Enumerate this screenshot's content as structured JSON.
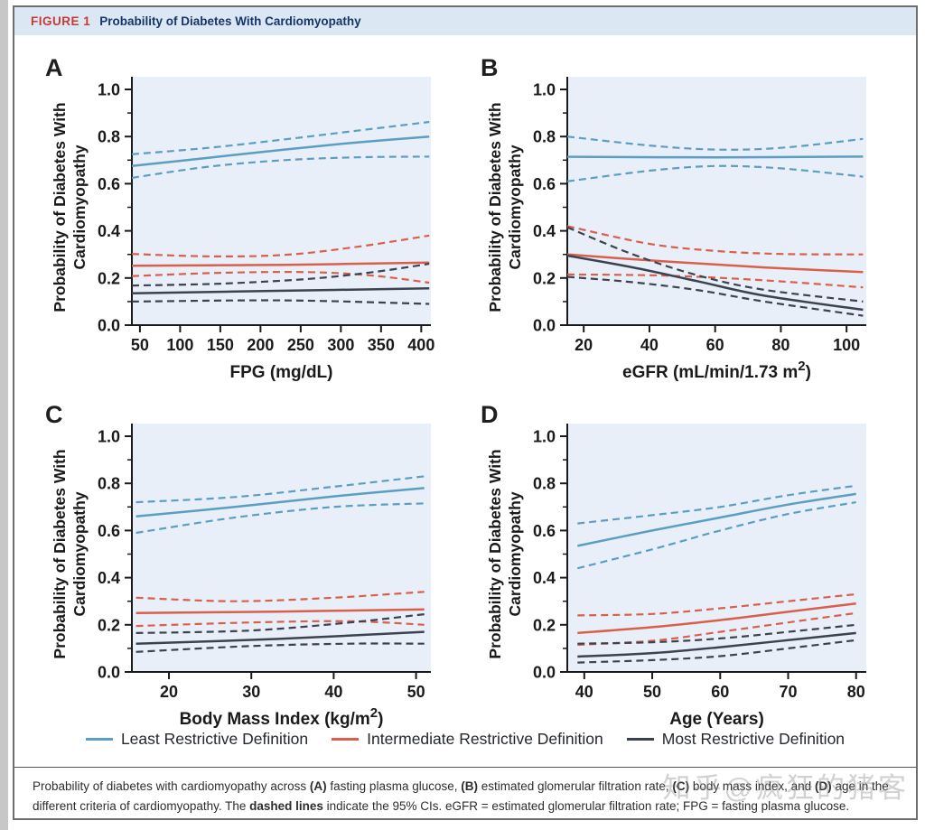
{
  "header": {
    "figure_label": "FIGURE 1",
    "title": "Probability of Diabetes With Cardiomyopathy"
  },
  "colors": {
    "least": "#5b9ec3",
    "intermediate": "#d95f4b",
    "most": "#3c4350",
    "plot_bg": "#e9eff8",
    "header_bg": "#dbe8f4",
    "figure_label_red": "#c63a33",
    "title_navy": "#17356b",
    "axis": "#1a1a1a",
    "border_gray": "#6e6e6e"
  },
  "legend": {
    "items": [
      {
        "label": "Least Restrictive Definition",
        "group": "least"
      },
      {
        "label": "Intermediate Restrictive Definition",
        "group": "intermediate"
      },
      {
        "label": "Most Restrictive Definition",
        "group": "most"
      }
    ]
  },
  "caption": {
    "segments": [
      {
        "text": "Probability of diabetes with cardiomyopathy across ",
        "bold": false
      },
      {
        "text": "(A)",
        "bold": true
      },
      {
        "text": " fasting plasma glucose, ",
        "bold": false
      },
      {
        "text": "(B)",
        "bold": true
      },
      {
        "text": " estimated glomerular filtration rate, ",
        "bold": false
      },
      {
        "text": "(C)",
        "bold": true
      },
      {
        "text": " body mass index, and ",
        "bold": false
      },
      {
        "text": "(D)",
        "bold": true
      },
      {
        "text": " age in the different criteria of cardiomyopathy. The ",
        "bold": false
      },
      {
        "text": "dashed lines",
        "bold": true
      },
      {
        "text": " indicate the 95% CIs. eGFR = estimated glomerular filtration rate; FPG = fasting plasma glucose.",
        "bold": false
      }
    ]
  },
  "watermark": {
    "text": "知乎@疯狂的猪客"
  },
  "chart_data": [
    {
      "type": "line",
      "panel": "A",
      "title": "",
      "xlabel": "FPG (mg/dL)",
      "ylabel_lines": [
        "Probability of Diabetes With",
        "Cardiomyopathy"
      ],
      "xdomain": [
        40,
        412
      ],
      "xticks": [
        50,
        100,
        150,
        200,
        250,
        300,
        350,
        400
      ],
      "ylim": [
        0,
        1
      ],
      "yticks": [
        0.0,
        0.2,
        0.4,
        0.6,
        0.8,
        1.0
      ],
      "grid": false,
      "series": [
        {
          "group": "least",
          "band": "upper",
          "points": [
            [
              40,
              0.725
            ],
            [
              135,
              0.752
            ],
            [
              230,
              0.788
            ],
            [
              320,
              0.825
            ],
            [
              410,
              0.862
            ]
          ]
        },
        {
          "group": "least",
          "band": "lower",
          "points": [
            [
              40,
              0.625
            ],
            [
              135,
              0.672
            ],
            [
              230,
              0.7
            ],
            [
              320,
              0.712
            ],
            [
              410,
              0.715
            ]
          ]
        },
        {
          "group": "least",
          "band": "solid",
          "points": [
            [
              40,
              0.675
            ],
            [
              135,
              0.71
            ],
            [
              230,
              0.745
            ],
            [
              320,
              0.775
            ],
            [
              410,
              0.8
            ]
          ]
        },
        {
          "group": "intermediate",
          "band": "upper",
          "points": [
            [
              40,
              0.302
            ],
            [
              135,
              0.292
            ],
            [
              230,
              0.298
            ],
            [
              320,
              0.332
            ],
            [
              410,
              0.38
            ]
          ]
        },
        {
          "group": "intermediate",
          "band": "lower",
          "points": [
            [
              40,
              0.208
            ],
            [
              150,
              0.222
            ],
            [
              260,
              0.225
            ],
            [
              340,
              0.21
            ],
            [
              410,
              0.18
            ]
          ]
        },
        {
          "group": "intermediate",
          "band": "solid",
          "points": [
            [
              40,
              0.252
            ],
            [
              230,
              0.256
            ],
            [
              410,
              0.265
            ]
          ]
        },
        {
          "group": "most",
          "band": "upper",
          "points": [
            [
              40,
              0.168
            ],
            [
              150,
              0.176
            ],
            [
              260,
              0.196
            ],
            [
              340,
              0.225
            ],
            [
              410,
              0.26
            ]
          ]
        },
        {
          "group": "most",
          "band": "lower",
          "points": [
            [
              40,
              0.1
            ],
            [
              230,
              0.105
            ],
            [
              410,
              0.09
            ]
          ]
        },
        {
          "group": "most",
          "band": "solid",
          "points": [
            [
              40,
              0.135
            ],
            [
              230,
              0.146
            ],
            [
              410,
              0.156
            ]
          ]
        }
      ]
    },
    {
      "type": "line",
      "panel": "B",
      "title": "",
      "xlabel": "eGFR (mL/min/1.73 m²)",
      "ylabel_lines": [
        "Probability of Diabetes With",
        "Cardiomyopathy"
      ],
      "xdomain": [
        15,
        106
      ],
      "xticks": [
        20,
        40,
        60,
        80,
        100
      ],
      "ylim": [
        0,
        1
      ],
      "yticks": [
        0.0,
        0.2,
        0.4,
        0.6,
        0.8,
        1.0
      ],
      "grid": false,
      "series": [
        {
          "group": "least",
          "band": "upper",
          "points": [
            [
              15,
              0.8
            ],
            [
              40,
              0.762
            ],
            [
              60,
              0.745
            ],
            [
              80,
              0.752
            ],
            [
              105,
              0.79
            ]
          ]
        },
        {
          "group": "least",
          "band": "lower",
          "points": [
            [
              15,
              0.61
            ],
            [
              40,
              0.655
            ],
            [
              60,
              0.675
            ],
            [
              80,
              0.665
            ],
            [
              105,
              0.63
            ]
          ]
        },
        {
          "group": "least",
          "band": "solid",
          "points": [
            [
              15,
              0.714
            ],
            [
              60,
              0.712
            ],
            [
              105,
              0.715
            ]
          ]
        },
        {
          "group": "intermediate",
          "band": "upper",
          "points": [
            [
              15,
              0.42
            ],
            [
              40,
              0.345
            ],
            [
              60,
              0.315
            ],
            [
              80,
              0.302
            ],
            [
              105,
              0.3
            ]
          ]
        },
        {
          "group": "intermediate",
          "band": "lower",
          "points": [
            [
              15,
              0.215
            ],
            [
              45,
              0.21
            ],
            [
              75,
              0.19
            ],
            [
              105,
              0.16
            ]
          ]
        },
        {
          "group": "intermediate",
          "band": "solid",
          "points": [
            [
              15,
              0.3
            ],
            [
              45,
              0.27
            ],
            [
              75,
              0.245
            ],
            [
              105,
              0.225
            ]
          ]
        },
        {
          "group": "most",
          "band": "upper",
          "points": [
            [
              15,
              0.415
            ],
            [
              35,
              0.3
            ],
            [
              55,
              0.21
            ],
            [
              75,
              0.15
            ],
            [
              105,
              0.1
            ]
          ]
        },
        {
          "group": "most",
          "band": "lower",
          "points": [
            [
              15,
              0.205
            ],
            [
              35,
              0.182
            ],
            [
              55,
              0.148
            ],
            [
              75,
              0.1
            ],
            [
              105,
              0.04
            ]
          ]
        },
        {
          "group": "most",
          "band": "solid",
          "points": [
            [
              15,
              0.295
            ],
            [
              35,
              0.245
            ],
            [
              55,
              0.185
            ],
            [
              75,
              0.125
            ],
            [
              105,
              0.065
            ]
          ]
        }
      ]
    },
    {
      "type": "line",
      "panel": "C",
      "title": "",
      "xlabel": "Body Mass Index (kg/m²)",
      "ylabel_lines": [
        "Probability of Diabetes With",
        "Cardiomyopathy"
      ],
      "xdomain": [
        15.5,
        51.8
      ],
      "xticks": [
        20,
        30,
        40,
        50
      ],
      "ylim": [
        0,
        1
      ],
      "yticks": [
        0.0,
        0.2,
        0.4,
        0.6,
        0.8,
        1.0
      ],
      "grid": false,
      "series": [
        {
          "group": "least",
          "band": "upper",
          "points": [
            [
              16,
              0.72
            ],
            [
              28,
              0.742
            ],
            [
              40,
              0.786
            ],
            [
              51,
              0.83
            ]
          ]
        },
        {
          "group": "least",
          "band": "lower",
          "points": [
            [
              16,
              0.59
            ],
            [
              28,
              0.655
            ],
            [
              40,
              0.7
            ],
            [
              51,
              0.715
            ]
          ]
        },
        {
          "group": "least",
          "band": "solid",
          "points": [
            [
              16,
              0.66
            ],
            [
              28,
              0.7
            ],
            [
              40,
              0.745
            ],
            [
              51,
              0.78
            ]
          ]
        },
        {
          "group": "intermediate",
          "band": "upper",
          "points": [
            [
              16,
              0.315
            ],
            [
              28,
              0.3
            ],
            [
              40,
              0.315
            ],
            [
              51,
              0.34
            ]
          ]
        },
        {
          "group": "intermediate",
          "band": "lower",
          "points": [
            [
              16,
              0.195
            ],
            [
              30,
              0.21
            ],
            [
              42,
              0.215
            ],
            [
              51,
              0.2
            ]
          ]
        },
        {
          "group": "intermediate",
          "band": "solid",
          "points": [
            [
              16,
              0.25
            ],
            [
              33,
              0.256
            ],
            [
              51,
              0.265
            ]
          ]
        },
        {
          "group": "most",
          "band": "upper",
          "points": [
            [
              16,
              0.165
            ],
            [
              30,
              0.176
            ],
            [
              42,
              0.21
            ],
            [
              51,
              0.245
            ]
          ]
        },
        {
          "group": "most",
          "band": "lower",
          "points": [
            [
              16,
              0.085
            ],
            [
              30,
              0.11
            ],
            [
              42,
              0.12
            ],
            [
              51,
              0.12
            ]
          ]
        },
        {
          "group": "most",
          "band": "solid",
          "points": [
            [
              16,
              0.12
            ],
            [
              33,
              0.14
            ],
            [
              51,
              0.17
            ]
          ]
        }
      ]
    },
    {
      "type": "line",
      "panel": "D",
      "title": "",
      "xlabel": "Age (Years)",
      "ylabel_lines": [
        "Probability of Diabetes With",
        "Cardiomyopathy"
      ],
      "xdomain": [
        37.5,
        81.5
      ],
      "xticks": [
        40,
        50,
        60,
        70,
        80
      ],
      "ylim": [
        0,
        1
      ],
      "yticks": [
        0.0,
        0.2,
        0.4,
        0.6,
        0.8,
        1.0
      ],
      "grid": false,
      "series": [
        {
          "group": "least",
          "band": "upper",
          "points": [
            [
              39,
              0.63
            ],
            [
              50,
              0.665
            ],
            [
              60,
              0.7
            ],
            [
              70,
              0.75
            ],
            [
              80,
              0.79
            ]
          ]
        },
        {
          "group": "least",
          "band": "lower",
          "points": [
            [
              39,
              0.44
            ],
            [
              50,
              0.52
            ],
            [
              60,
              0.6
            ],
            [
              70,
              0.67
            ],
            [
              80,
              0.72
            ]
          ]
        },
        {
          "group": "least",
          "band": "solid",
          "points": [
            [
              39,
              0.535
            ],
            [
              50,
              0.6
            ],
            [
              60,
              0.655
            ],
            [
              70,
              0.71
            ],
            [
              80,
              0.755
            ]
          ]
        },
        {
          "group": "intermediate",
          "band": "upper",
          "points": [
            [
              39,
              0.24
            ],
            [
              50,
              0.246
            ],
            [
              60,
              0.27
            ],
            [
              70,
              0.3
            ],
            [
              80,
              0.33
            ]
          ]
        },
        {
          "group": "intermediate",
          "band": "lower",
          "points": [
            [
              39,
              0.115
            ],
            [
              50,
              0.132
            ],
            [
              60,
              0.17
            ],
            [
              70,
              0.21
            ],
            [
              80,
              0.25
            ]
          ]
        },
        {
          "group": "intermediate",
          "band": "solid",
          "points": [
            [
              39,
              0.165
            ],
            [
              50,
              0.19
            ],
            [
              60,
              0.22
            ],
            [
              70,
              0.255
            ],
            [
              80,
              0.29
            ]
          ]
        },
        {
          "group": "most",
          "band": "upper",
          "points": [
            [
              39,
              0.12
            ],
            [
              50,
              0.126
            ],
            [
              60,
              0.142
            ],
            [
              70,
              0.17
            ],
            [
              80,
              0.2
            ]
          ]
        },
        {
          "group": "most",
          "band": "lower",
          "points": [
            [
              39,
              0.04
            ],
            [
              50,
              0.05
            ],
            [
              60,
              0.067
            ],
            [
              70,
              0.1
            ],
            [
              80,
              0.135
            ]
          ]
        },
        {
          "group": "most",
          "band": "solid",
          "points": [
            [
              39,
              0.065
            ],
            [
              50,
              0.08
            ],
            [
              60,
              0.105
            ],
            [
              70,
              0.135
            ],
            [
              80,
              0.165
            ]
          ]
        }
      ]
    }
  ]
}
